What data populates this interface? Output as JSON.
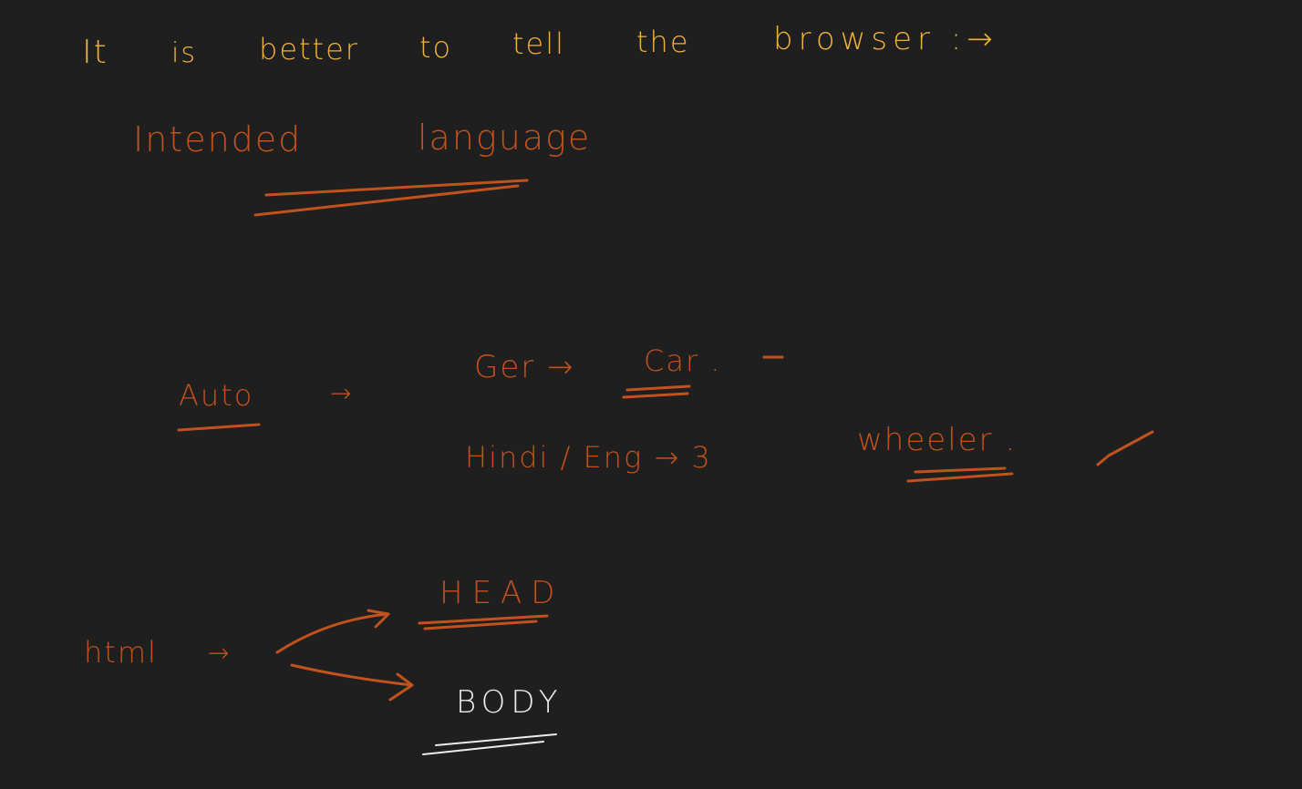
{
  "canvas": {
    "background": "#1f1f1f"
  },
  "colors": {
    "yellow_ink": "#f2b13c",
    "orange_ink": "#c2521d",
    "white_ink": "#ececec"
  },
  "headline": {
    "words": [
      "It",
      "is",
      "better",
      "to",
      "tell",
      "the",
      "browser :→"
    ]
  },
  "intended_language": {
    "word1": "Intended",
    "word2": "language"
  },
  "example": {
    "auto_label": "Auto",
    "auto_arrow": "→",
    "ger_line": "Ger →",
    "ger_result": "Car .",
    "hindi_line": "Hindi / Eng → 3",
    "hindi_result": "wheeler .",
    "check_icon": "check-mark"
  },
  "html_diagram": {
    "root": "html",
    "root_arrow": "→",
    "head": "HEAD",
    "body": "BODY"
  }
}
